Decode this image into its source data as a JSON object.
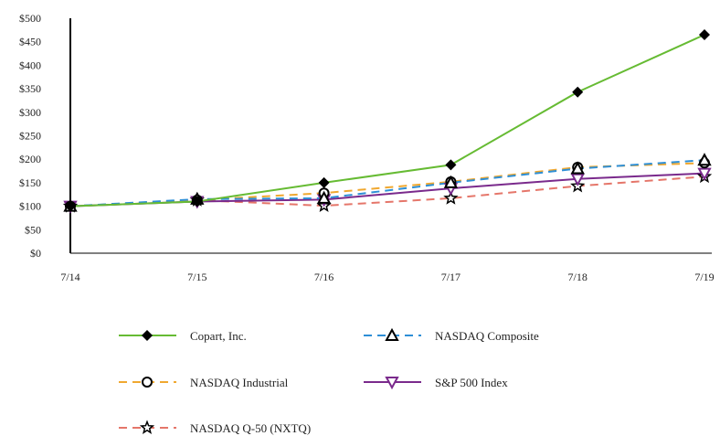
{
  "chart_data": {
    "type": "line",
    "title": "",
    "xlabel": "",
    "ylabel": "",
    "categories": [
      "7/14",
      "7/15",
      "7/16",
      "7/17",
      "7/18",
      "7/19"
    ],
    "ylim": [
      0,
      500
    ],
    "y_ticks": [
      "$0",
      "$50",
      "$100",
      "$150",
      "$200",
      "$250",
      "$300",
      "$350",
      "$400",
      "$450",
      "$500"
    ],
    "grid": false,
    "legend_position": "bottom",
    "series": [
      {
        "name": "Copart, Inc.",
        "values": [
          100,
          110,
          150,
          188,
          343,
          465
        ],
        "color": "#66bb33",
        "dash": "solid",
        "marker": "diamond"
      },
      {
        "name": "NASDAQ Composite",
        "values": [
          100,
          115,
          117,
          150,
          180,
          198
        ],
        "color": "#2e8fd6",
        "dash": "dashed",
        "marker": "triangle-up"
      },
      {
        "name": "NASDAQ Industrial",
        "values": [
          100,
          113,
          128,
          152,
          183,
          192
        ],
        "color": "#f0a830",
        "dash": "dashed",
        "marker": "circle"
      },
      {
        "name": "S&P 500 Index",
        "values": [
          100,
          110,
          114,
          138,
          158,
          170
        ],
        "color": "#7a2a8c",
        "dash": "solid",
        "marker": "triangle-down"
      },
      {
        "name": "NASDAQ Q-50 (NXTQ)",
        "values": [
          100,
          113,
          101,
          117,
          143,
          163
        ],
        "color": "#e5766a",
        "dash": "dashed",
        "marker": "star"
      }
    ]
  }
}
